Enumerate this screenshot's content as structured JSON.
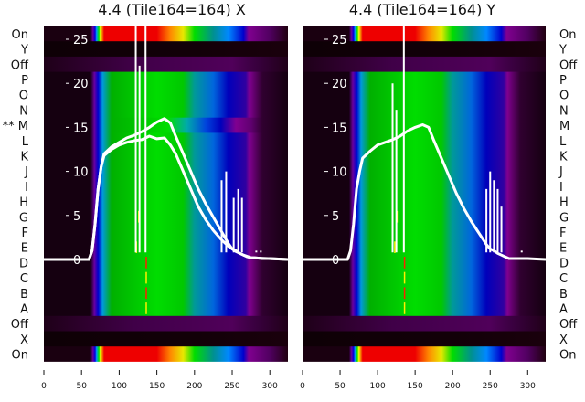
{
  "chart_data": [
    {
      "type": "heatmap",
      "title": "4.4 (Tile164=164) X",
      "rows": [
        "On",
        "Y",
        "Off",
        "P",
        "O",
        "N",
        "M",
        "L",
        "K",
        "J",
        "I",
        "H",
        "G",
        "F",
        "E",
        "D",
        "C",
        "B",
        "A",
        "Off",
        "X",
        "On"
      ],
      "row_markers": {
        "M": "**"
      },
      "row_kinds": [
        "on",
        "dark",
        "off",
        "band",
        "band",
        "band",
        "bandM",
        "band",
        "band",
        "band",
        "band",
        "band",
        "band",
        "band",
        "band",
        "band",
        "band",
        "band",
        "band",
        "off",
        "dark",
        "on"
      ],
      "xlim": [
        0,
        324
      ],
      "xticks": [
        0,
        50,
        100,
        150,
        200,
        250,
        300
      ],
      "ylim": [
        -6,
        26
      ],
      "yticks": [
        0,
        5,
        10,
        15,
        20,
        25
      ],
      "series": [
        {
          "name": "profile-upper",
          "x": [
            0,
            60,
            64,
            68,
            72,
            76,
            80,
            90,
            100,
            110,
            120,
            130,
            140,
            150,
            160,
            168,
            175,
            185,
            195,
            205,
            215,
            225,
            235,
            245,
            250,
            255,
            260,
            265,
            270,
            275,
            280,
            290,
            300,
            324
          ],
          "y": [
            0,
            0,
            1,
            4,
            8,
            10.5,
            12,
            12.8,
            13.3,
            13.8,
            14.1,
            14.5,
            15.0,
            15.6,
            16.0,
            15.5,
            14.0,
            12.0,
            10.0,
            8.0,
            6.3,
            4.8,
            3.3,
            1.8,
            1.2,
            1.0,
            0.7,
            0.5,
            0.3,
            0.2,
            0.2,
            0.1,
            0.1,
            0
          ]
        },
        {
          "name": "profile-lower",
          "x": [
            0,
            60,
            64,
            68,
            72,
            76,
            80,
            90,
            100,
            110,
            120,
            130,
            140,
            150,
            160,
            168,
            175,
            185,
            195,
            205,
            215,
            225,
            235,
            245,
            255,
            265,
            275,
            324
          ],
          "y": [
            0,
            0,
            1,
            4,
            8,
            10.5,
            11.8,
            12.5,
            13.0,
            13.3,
            13.5,
            13.6,
            14.0,
            13.7,
            13.8,
            13.0,
            12.0,
            10.0,
            8.0,
            6.0,
            4.5,
            3.3,
            2.3,
            1.5,
            0.9,
            0.5,
            0.2,
            0
          ]
        },
        {
          "name": "spikes",
          "points": [
            [
              122,
              27
            ],
            [
              127,
              22
            ],
            [
              135,
              27
            ],
            [
              236,
              9
            ],
            [
              242,
              10
            ],
            [
              252,
              7
            ],
            [
              258,
              8
            ],
            [
              263,
              7
            ],
            [
              282,
              1
            ],
            [
              288,
              1
            ]
          ]
        }
      ]
    },
    {
      "type": "heatmap",
      "title": "4.4 (Tile164=164) Y",
      "rows": [
        "On",
        "Y",
        "Off",
        "P",
        "O",
        "N",
        "M",
        "L",
        "K",
        "J",
        "I",
        "H",
        "G",
        "F",
        "E",
        "D",
        "C",
        "B",
        "A",
        "Off",
        "X",
        "On"
      ],
      "row_kinds": [
        "on",
        "dark",
        "off",
        "band",
        "band",
        "band",
        "band",
        "band",
        "band",
        "band",
        "band",
        "band",
        "band",
        "band",
        "band",
        "band",
        "band",
        "band",
        "band",
        "off",
        "dark",
        "on"
      ],
      "xlim": [
        0,
        324
      ],
      "xticks": [
        0,
        50,
        100,
        150,
        200,
        250,
        300
      ],
      "ylim": [
        -6,
        26
      ],
      "yticks": [
        0,
        5,
        10,
        15,
        20,
        25
      ],
      "series": [
        {
          "name": "profile",
          "x": [
            0,
            60,
            64,
            68,
            72,
            76,
            80,
            90,
            100,
            110,
            120,
            130,
            140,
            150,
            160,
            168,
            175,
            185,
            195,
            205,
            215,
            225,
            235,
            245,
            250,
            255,
            260,
            265,
            270,
            275,
            280,
            290,
            300,
            324
          ],
          "y": [
            0,
            0,
            1,
            4,
            8,
            10,
            11.5,
            12.3,
            13.0,
            13.3,
            13.6,
            14.0,
            14.6,
            15.0,
            15.3,
            15.0,
            13.5,
            11.5,
            9.5,
            7.5,
            5.8,
            4.3,
            3.0,
            1.7,
            1.2,
            1.0,
            0.7,
            0.5,
            0.3,
            0.1,
            0.1,
            0.1,
            0.1,
            0
          ]
        },
        {
          "name": "spikes",
          "points": [
            [
              120,
              20
            ],
            [
              125,
              17
            ],
            [
              135,
              27
            ],
            [
              245,
              8
            ],
            [
              250,
              10
            ],
            [
              255,
              9
            ],
            [
              260,
              8
            ],
            [
              265,
              6
            ],
            [
              292,
              1
            ]
          ]
        }
      ]
    }
  ]
}
